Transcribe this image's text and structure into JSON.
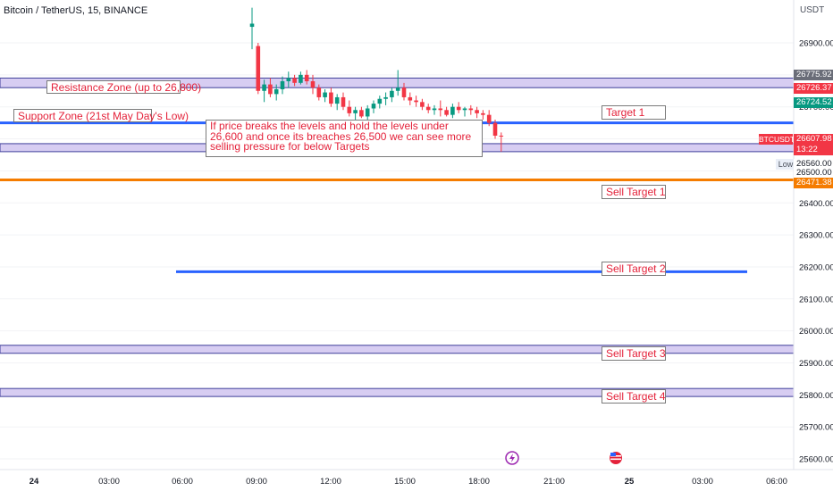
{
  "header": {
    "title": "Bitcoin / TetherUS, 15, BINANCE",
    "currency": "USDT"
  },
  "colors": {
    "background": "#ffffff",
    "bullish": "#089981",
    "bearish": "#f23645",
    "zone_fill": "#d7cdf2",
    "zone_border": "#3f3f9a",
    "blue_line": "#2962ff",
    "orange_line": "#f57c00",
    "annotation_text": "#e4223a"
  },
  "chart_data": {
    "type": "candlestick",
    "title": "Bitcoin / TetherUS, 15, BINANCE",
    "ylim": [
      25580,
      27010
    ],
    "y_ticks": [
      26900,
      26800,
      26700,
      26600,
      26500,
      26400,
      26300,
      26200,
      26100,
      26000,
      25900,
      25800,
      25700,
      25600
    ],
    "y_tick_labels": [
      "26900.00",
      "26800.00",
      "26700.00",
      "26600.00",
      "26500.00",
      "26400.00",
      "26300.00",
      "26200.00",
      "26100.00",
      "26000.00",
      "25900.00",
      "25800.00",
      "25700.00",
      "25600.00"
    ],
    "x_tick_labels": [
      "24",
      "03:00",
      "06:00",
      "09:00",
      "12:00",
      "15:00",
      "18:00",
      "21:00",
      "25",
      "03:00",
      "06:00"
    ],
    "candles": [
      {
        "time": "09:00",
        "o": 26950,
        "h": 27010,
        "l": 26880,
        "c": 26960
      },
      {
        "time": "09:15",
        "o": 26890,
        "h": 26900,
        "l": 26740,
        "c": 26750
      },
      {
        "time": "09:30",
        "o": 26750,
        "h": 26785,
        "l": 26715,
        "c": 26770
      },
      {
        "time": "09:45",
        "o": 26770,
        "h": 26790,
        "l": 26730,
        "c": 26740
      },
      {
        "time": "10:00",
        "o": 26740,
        "h": 26770,
        "l": 26720,
        "c": 26755
      },
      {
        "time": "10:15",
        "o": 26755,
        "h": 26795,
        "l": 26740,
        "c": 26780
      },
      {
        "time": "10:30",
        "o": 26780,
        "h": 26810,
        "l": 26760,
        "c": 26790
      },
      {
        "time": "10:45",
        "o": 26790,
        "h": 26800,
        "l": 26765,
        "c": 26775
      },
      {
        "time": "11:00",
        "o": 26775,
        "h": 26810,
        "l": 26770,
        "c": 26800
      },
      {
        "time": "11:15",
        "o": 26800,
        "h": 26815,
        "l": 26770,
        "c": 26780
      },
      {
        "time": "11:30",
        "o": 26780,
        "h": 26800,
        "l": 26740,
        "c": 26760
      },
      {
        "time": "11:45",
        "o": 26760,
        "h": 26770,
        "l": 26720,
        "c": 26730
      },
      {
        "time": "12:00",
        "o": 26730,
        "h": 26755,
        "l": 26715,
        "c": 26745
      },
      {
        "time": "12:15",
        "o": 26745,
        "h": 26760,
        "l": 26700,
        "c": 26710
      },
      {
        "time": "12:30",
        "o": 26710,
        "h": 26740,
        "l": 26690,
        "c": 26730
      },
      {
        "time": "12:45",
        "o": 26730,
        "h": 26745,
        "l": 26690,
        "c": 26700
      },
      {
        "time": "13:00",
        "o": 26700,
        "h": 26720,
        "l": 26670,
        "c": 26680
      },
      {
        "time": "13:15",
        "o": 26680,
        "h": 26700,
        "l": 26660,
        "c": 26690
      },
      {
        "time": "13:30",
        "o": 26690,
        "h": 26700,
        "l": 26665,
        "c": 26670
      },
      {
        "time": "13:45",
        "o": 26670,
        "h": 26705,
        "l": 26660,
        "c": 26695
      },
      {
        "time": "14:00",
        "o": 26695,
        "h": 26720,
        "l": 26680,
        "c": 26710
      },
      {
        "time": "14:15",
        "o": 26710,
        "h": 26735,
        "l": 26695,
        "c": 26725
      },
      {
        "time": "14:30",
        "o": 26725,
        "h": 26745,
        "l": 26705,
        "c": 26730
      },
      {
        "time": "14:45",
        "o": 26730,
        "h": 26760,
        "l": 26715,
        "c": 26750
      },
      {
        "time": "15:00",
        "o": 26750,
        "h": 26815,
        "l": 26735,
        "c": 26760
      },
      {
        "time": "15:15",
        "o": 26760,
        "h": 26775,
        "l": 26720,
        "c": 26730
      },
      {
        "time": "15:30",
        "o": 26730,
        "h": 26745,
        "l": 26705,
        "c": 26720
      },
      {
        "time": "15:45",
        "o": 26720,
        "h": 26735,
        "l": 26700,
        "c": 26715
      },
      {
        "time": "16:00",
        "o": 26715,
        "h": 26725,
        "l": 26690,
        "c": 26700
      },
      {
        "time": "16:15",
        "o": 26700,
        "h": 26710,
        "l": 26680,
        "c": 26690
      },
      {
        "time": "16:30",
        "o": 26690,
        "h": 26705,
        "l": 26675,
        "c": 26695
      },
      {
        "time": "16:45",
        "o": 26695,
        "h": 26720,
        "l": 26670,
        "c": 26690
      },
      {
        "time": "17:00",
        "o": 26690,
        "h": 26700,
        "l": 26670,
        "c": 26675
      },
      {
        "time": "17:15",
        "o": 26675,
        "h": 26710,
        "l": 26665,
        "c": 26700
      },
      {
        "time": "17:30",
        "o": 26700,
        "h": 26715,
        "l": 26680,
        "c": 26690
      },
      {
        "time": "17:45",
        "o": 26690,
        "h": 26700,
        "l": 26670,
        "c": 26695
      },
      {
        "time": "18:00",
        "o": 26695,
        "h": 26705,
        "l": 26675,
        "c": 26690
      },
      {
        "time": "18:15",
        "o": 26690,
        "h": 26700,
        "l": 26665,
        "c": 26680
      },
      {
        "time": "18:30",
        "o": 26680,
        "h": 26690,
        "l": 26660,
        "c": 26675
      },
      {
        "time": "18:45",
        "o": 26675,
        "h": 26690,
        "l": 26640,
        "c": 26650
      },
      {
        "time": "19:00",
        "o": 26650,
        "h": 26660,
        "l": 26600,
        "c": 26610
      },
      {
        "time": "19:15",
        "o": 26610,
        "h": 26620,
        "l": 26560,
        "c": 26608
      }
    ],
    "zones": [
      {
        "label": "Resistance Zone (up to 26,800)",
        "from": 26760,
        "to": 26790,
        "color": "#d7cdf2"
      },
      {
        "label": "",
        "from": 26560,
        "to": 26585,
        "color": "#d7cdf2"
      },
      {
        "label": "",
        "from": 25930,
        "to": 25955,
        "color": "#d7cdf2"
      },
      {
        "label": "",
        "from": 25795,
        "to": 25820,
        "color": "#d7cdf2"
      }
    ],
    "lines": [
      {
        "value": 26650,
        "color": "#2962ff",
        "kind": "support"
      },
      {
        "value": 26472,
        "color": "#f57c00",
        "kind": "low-line"
      },
      {
        "value": 26185,
        "color": "#2962ff",
        "kind": "target-2"
      }
    ],
    "axis_price_labels": [
      {
        "text": "26775.92",
        "bg": "#6a6d78"
      },
      {
        "text": "26726.37",
        "bg": "#f23645"
      },
      {
        "text": "26724.52",
        "bg": "#089981"
      },
      {
        "text": "26607.98",
        "bg": "#f23645"
      },
      {
        "text": "13:22",
        "bg": "#f23645"
      },
      {
        "text": "26560.00",
        "bg": "#ffffff"
      },
      {
        "text": "26500.00",
        "bg": "#ffffff"
      },
      {
        "text": "26471.38",
        "bg": "#f57c00"
      }
    ],
    "symbol_label": "BTCUSDT",
    "low_label": "Low",
    "annotations": {
      "resistance": "Resistance Zone (up to 26,800)",
      "support": "Support Zone (21st May Day's Low)",
      "note": "If price breaks the levels and hold the levels under 26,600 and once its breaches 26,500 we can see more selling pressure for below Targets",
      "target_1": "Target 1",
      "sell_target_1": "Sell Target 1",
      "sell_target_2": "Sell Target 2",
      "sell_target_3": "Sell Target 3",
      "sell_target_4": "Sell Target 4"
    }
  }
}
